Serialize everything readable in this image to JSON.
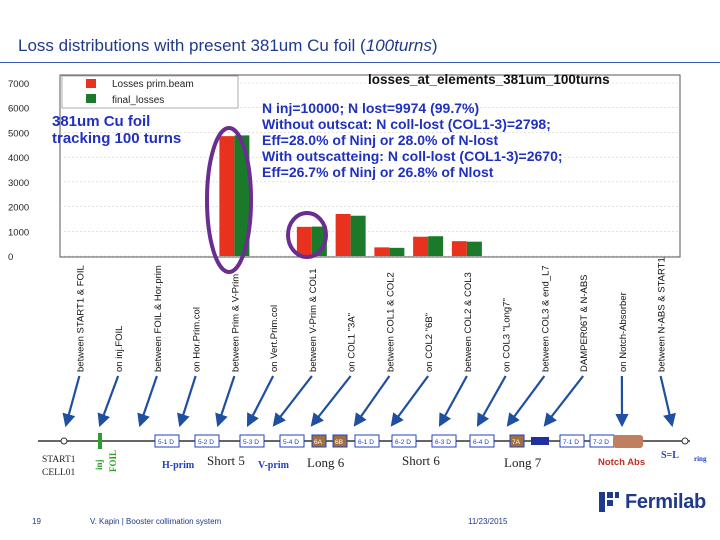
{
  "slide": {
    "title_main": "Loss distributions with present 381um Cu foil (",
    "title_italic": "100turns",
    "title_end": ")",
    "page_number": "19",
    "author": "V. Kapin | Booster collimation system",
    "date": "11/23/2015",
    "logo_text": "Fermilab"
  },
  "colors": {
    "red": "#e8321d",
    "green": "#1a7a2a",
    "circle": "#6b2d8f",
    "arrow": "#1f4fa0",
    "annotation": "#2030c0"
  },
  "chart_data": {
    "type": "bar",
    "title": "losses_at_elements_381um_100turns",
    "ylim": [
      0,
      7000
    ],
    "yticks": [
      "0",
      "1000",
      "2000",
      "3000",
      "4000",
      "5000",
      "6000",
      "7000"
    ],
    "series": [
      {
        "name": "Losses prim.beam",
        "color": "#e8321d"
      },
      {
        "name": "final_losses",
        "color": "#1a7a2a"
      }
    ],
    "categories": [
      "between START1 & FOIL",
      "on inj.FOIL",
      "between FOIL & Hor.prim",
      "on Hor.Prim.col",
      "between Prim & V-Prim",
      "on Vert.Prim.col",
      "between V-Prim & COL1",
      "on COL1 \"3A\"",
      "between COL1 & COL2",
      "on COL2 \"6B\"",
      "between COL2 & COL3",
      "on COL3 \"Long7\"",
      "between COL3 & end_L7",
      "DAMPER06T & N-ABS",
      "on Notch-Absorber",
      "between N-ABS & START1"
    ],
    "red_values": [
      0,
      0,
      0,
      0,
      4850,
      0,
      1180,
      1700,
      350,
      780,
      600,
      0,
      0,
      0,
      0,
      0
    ],
    "green_values": [
      0,
      0,
      0,
      0,
      4880,
      0,
      1190,
      1630,
      330,
      800,
      580,
      0,
      0,
      0,
      0,
      0
    ],
    "annotations": [
      "381um Cu foil",
      "tracking 100 turns",
      "N inj=10000; N lost=9974 (99.7%)",
      "Without outscat: N coll-lost (COL1-3)=2798;",
      "Eff=28.0% of Ninj or 28.0% of N-lost",
      "With outscatteing: N coll-lost (COL1-3)=2670;",
      "Eff=26.7% of Ninj or 26.8% of Nlost"
    ]
  },
  "lattice": {
    "left_labels": [
      "START1",
      "CELL01"
    ],
    "inj_label": "inj",
    "foil_label": "FOIL",
    "hprim": "H-prim",
    "vprim": "V-prim",
    "sections": [
      "Short 5",
      "Long 6",
      "Short 6",
      "Long 7"
    ],
    "notch": "Notch Abs",
    "end_label": "S=L",
    "end_sub": "ring",
    "magnets": [
      "5-1 D",
      "5-2 D",
      "5-3 D",
      "5-4 D",
      "6A",
      "6B",
      "6-1 D",
      "6-2 D",
      "6-3 D",
      "6-4 D",
      "7A",
      "7-1 D",
      "7-2 D"
    ]
  }
}
